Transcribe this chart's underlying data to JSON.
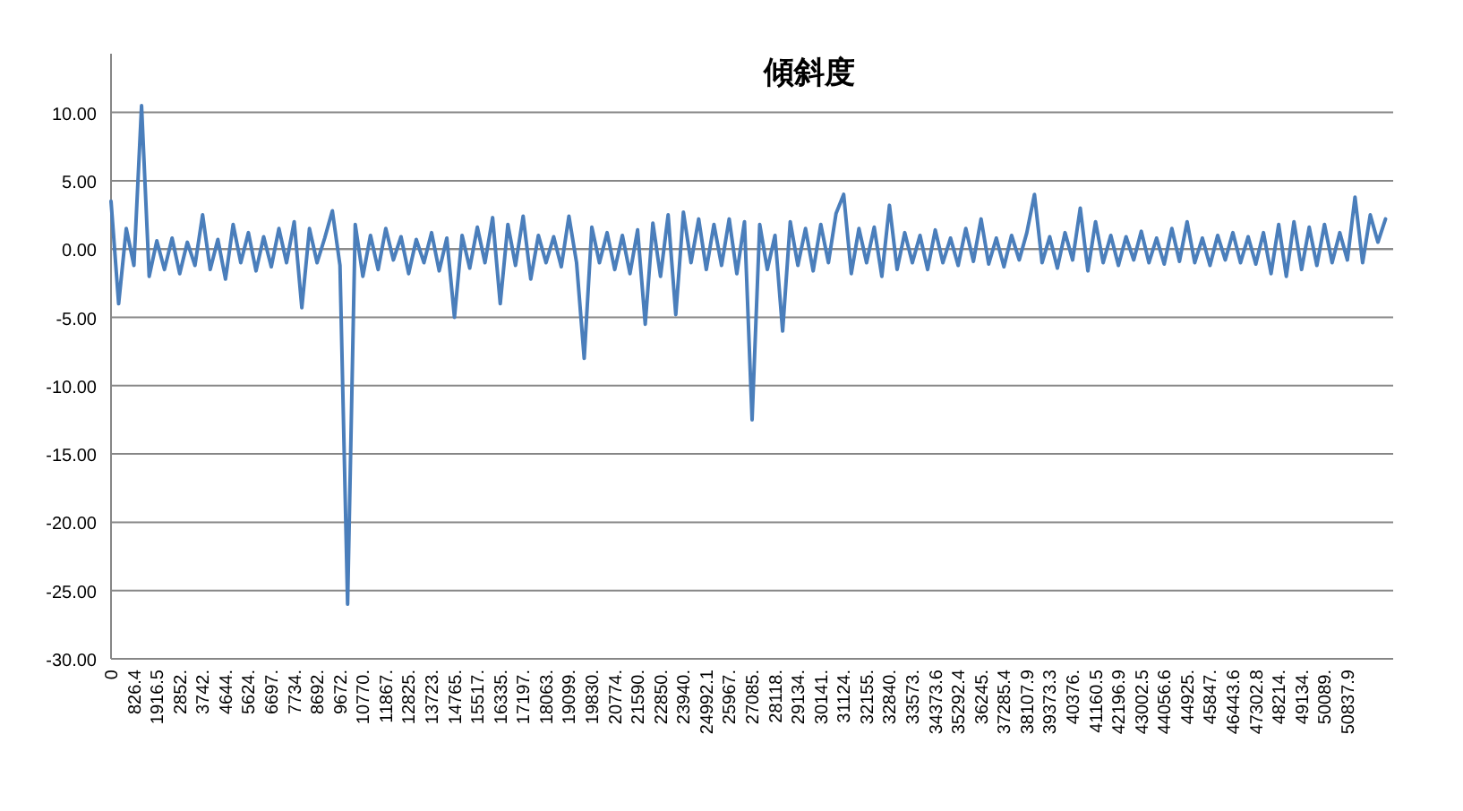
{
  "chart_data": {
    "type": "line",
    "title": "傾斜度",
    "categories": [
      "0",
      null,
      null,
      "826.4",
      null,
      null,
      "1916.5",
      null,
      null,
      "2852.",
      null,
      null,
      "3742.",
      null,
      null,
      "4644.",
      null,
      null,
      "5624.",
      null,
      null,
      "6697.",
      null,
      null,
      "7734.",
      null,
      null,
      "8692.",
      null,
      null,
      "9672.",
      null,
      null,
      "10770.",
      null,
      null,
      "11867.",
      null,
      null,
      "12825.",
      null,
      null,
      "13723.",
      null,
      null,
      "14765.",
      null,
      null,
      "15517.",
      null,
      null,
      "16335.",
      null,
      null,
      "17197.",
      null,
      null,
      "18063.",
      null,
      null,
      "19099.",
      null,
      null,
      "19830.",
      null,
      null,
      "20774.",
      null,
      null,
      "21590.",
      null,
      null,
      "22850.",
      null,
      null,
      "23940.",
      null,
      null,
      "24992.1",
      null,
      null,
      "25967.",
      null,
      null,
      "27085.",
      null,
      null,
      "28118.",
      null,
      null,
      "29134.",
      null,
      null,
      "30141.",
      null,
      null,
      "31124.",
      null,
      null,
      "32155.",
      null,
      null,
      "32840.",
      null,
      null,
      "33573.",
      null,
      null,
      "34373.6",
      null,
      null,
      "35292.4",
      null,
      null,
      "36245.",
      null,
      null,
      "37285.4",
      null,
      null,
      "38107.9",
      null,
      null,
      "39373.3",
      null,
      null,
      "40376.",
      null,
      null,
      "41160.5",
      null,
      null,
      "42196.9",
      null,
      null,
      "43002.5",
      null,
      null,
      "44056.6",
      null,
      null,
      "44925.",
      null,
      null,
      "45847.",
      null,
      null,
      "46443.6",
      null,
      null,
      "47302.8",
      null,
      null,
      "48214.",
      null,
      null,
      "49134.",
      null,
      null,
      "50089.",
      null,
      null,
      "50837.9",
      null,
      null,
      null,
      null,
      null
    ],
    "series": [
      {
        "color": "#4a7ebb",
        "values": [
          3.5,
          -4,
          1.5,
          -1.2,
          10.5,
          -2,
          0.6,
          -1.5,
          0.8,
          -1.8,
          0.5,
          -1.2,
          2.5,
          -1.5,
          0.7,
          -2.2,
          1.8,
          -1.0,
          1.2,
          -1.6,
          0.9,
          -1.3,
          1.5,
          -1.0,
          2.0,
          -4.3,
          1.5,
          -1.0,
          0.8,
          2.8,
          -1.2,
          -26,
          1.8,
          -2.0,
          1.0,
          -1.5,
          1.5,
          -0.8,
          0.9,
          -1.8,
          0.7,
          -1.0,
          1.2,
          -1.6,
          0.8,
          -5.0,
          1.0,
          -1.4,
          1.6,
          -1.0,
          2.3,
          -4.0,
          1.8,
          -1.2,
          2.4,
          -2.2,
          1.0,
          -1.0,
          0.9,
          -1.3,
          2.4,
          -1.0,
          -8.0,
          1.6,
          -1.0,
          1.2,
          -1.5,
          1.0,
          -1.8,
          1.4,
          -5.5,
          1.9,
          -2.0,
          2.5,
          -4.8,
          2.7,
          -1.0,
          2.2,
          -1.5,
          1.8,
          -1.2,
          2.2,
          -1.8,
          2.0,
          -12.5,
          1.8,
          -1.5,
          1.0,
          -6.0,
          2.0,
          -1.2,
          1.5,
          -1.6,
          1.8,
          -1.0,
          2.6,
          4.0,
          -1.8,
          1.5,
          -1.0,
          1.6,
          -2.0,
          3.2,
          -1.5,
          1.2,
          -1.0,
          1.0,
          -1.5,
          1.4,
          -1.0,
          0.8,
          -1.2,
          1.5,
          -0.9,
          2.2,
          -1.1,
          0.8,
          -1.3,
          1.0,
          -0.8,
          1.2,
          4.0,
          -1.0,
          0.9,
          -1.4,
          1.2,
          -0.8,
          3.0,
          -1.6,
          2.0,
          -1.0,
          1.0,
          -1.2,
          0.9,
          -0.8,
          1.3,
          -1.0,
          0.8,
          -1.1,
          1.5,
          -0.9,
          2.0,
          -1.0,
          0.8,
          -1.2,
          1.0,
          -0.8,
          1.2,
          -1.0,
          0.9,
          -1.1,
          1.2,
          -1.8,
          1.8,
          -2.0,
          2.0,
          -1.5,
          1.6,
          -1.2,
          1.8,
          -1.0,
          1.2,
          -0.8,
          3.8,
          -1.0,
          2.5,
          0.5,
          2.2
        ]
      }
    ],
    "ylim": [
      -30,
      14.3
    ],
    "yticks": [
      {
        "value": -30,
        "label": "-30.00"
      },
      {
        "value": -25,
        "label": "-25.00"
      },
      {
        "value": -20,
        "label": "-20.00"
      },
      {
        "value": -15,
        "label": "-15.00"
      },
      {
        "value": -10,
        "label": "-10.00"
      },
      {
        "value": -5,
        "label": "-5.00"
      },
      {
        "value": 0,
        "label": "0.00"
      },
      {
        "value": 5,
        "label": "5.00"
      },
      {
        "value": 10,
        "label": "10.00"
      }
    ],
    "grid": "y"
  }
}
